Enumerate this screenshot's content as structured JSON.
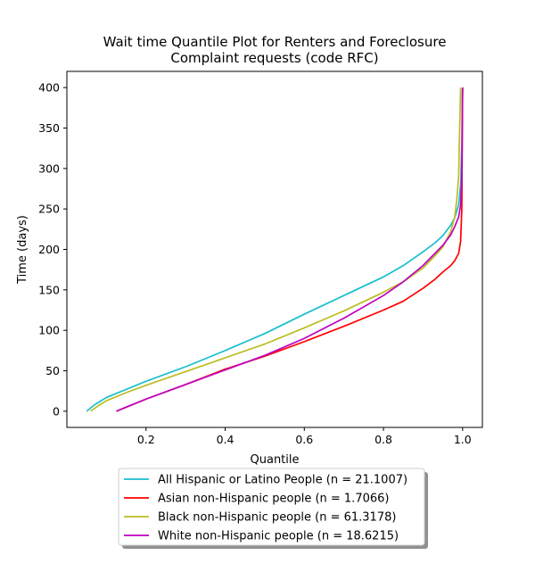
{
  "chart_data": {
    "type": "line",
    "title_line1": "Wait time Quantile Plot for Renters and Foreclosure",
    "title_line2": "Complaint  requests (code RFC)",
    "xlabel": "Quantile",
    "ylabel": "Time (days)",
    "xlim": [
      0.0,
      1.05
    ],
    "ylim": [
      -20,
      420
    ],
    "xticks": [
      0.2,
      0.4,
      0.6,
      0.8,
      1.0
    ],
    "xtick_labels": [
      "0.2",
      "0.4",
      "0.6",
      "0.8",
      "1.0"
    ],
    "yticks": [
      0,
      50,
      100,
      150,
      200,
      250,
      300,
      350,
      400
    ],
    "ytick_labels": [
      "0",
      "50",
      "100",
      "150",
      "200",
      "250",
      "300",
      "350",
      "400"
    ],
    "grid": false,
    "legend_position": "below",
    "series": [
      {
        "name": "All Hispanic or Latino People (n = 21.1007)",
        "color": "#17becf",
        "x": [
          0.05,
          0.07,
          0.1,
          0.15,
          0.2,
          0.3,
          0.4,
          0.5,
          0.6,
          0.7,
          0.8,
          0.85,
          0.9,
          0.93,
          0.95,
          0.97,
          0.98,
          0.99,
          0.995,
          0.998,
          1.0
        ],
        "y": [
          0,
          8,
          17,
          27,
          37,
          55,
          75,
          96,
          120,
          143,
          166,
          180,
          197,
          208,
          217,
          230,
          239,
          255,
          280,
          330,
          400
        ]
      },
      {
        "name": "Asian non-Hispanic people (n = 1.7066)",
        "color": "#ff0000",
        "x": [
          0.125,
          0.15,
          0.2,
          0.3,
          0.4,
          0.5,
          0.6,
          0.7,
          0.8,
          0.85,
          0.9,
          0.93,
          0.95,
          0.97,
          0.98,
          0.99,
          0.995,
          0.998,
          1.0
        ],
        "y": [
          0,
          5,
          15,
          33,
          52,
          68,
          86,
          105,
          125,
          136,
          152,
          163,
          172,
          180,
          186,
          195,
          210,
          250,
          400
        ]
      },
      {
        "name": "Black non-Hispanic people (n = 61.3178)",
        "color": "#bcbd22",
        "x": [
          0.06,
          0.08,
          0.1,
          0.15,
          0.2,
          0.3,
          0.4,
          0.5,
          0.6,
          0.7,
          0.8,
          0.85,
          0.9,
          0.93,
          0.95,
          0.97,
          0.98,
          0.985,
          0.99,
          0.993,
          0.995
        ],
        "y": [
          0,
          7,
          13,
          23,
          32,
          49,
          66,
          83,
          103,
          124,
          147,
          160,
          177,
          192,
          203,
          222,
          240,
          260,
          290,
          360,
          400
        ]
      },
      {
        "name": "White non-Hispanic people (n = 18.6215)",
        "color": "#bf00bf",
        "x": [
          0.125,
          0.15,
          0.2,
          0.3,
          0.4,
          0.5,
          0.6,
          0.7,
          0.8,
          0.85,
          0.9,
          0.93,
          0.95,
          0.97,
          0.98,
          0.99,
          0.995,
          0.998,
          1.0
        ],
        "y": [
          0,
          5,
          15,
          33,
          51,
          69,
          90,
          115,
          143,
          160,
          180,
          195,
          205,
          218,
          228,
          240,
          255,
          290,
          400
        ]
      }
    ]
  }
}
